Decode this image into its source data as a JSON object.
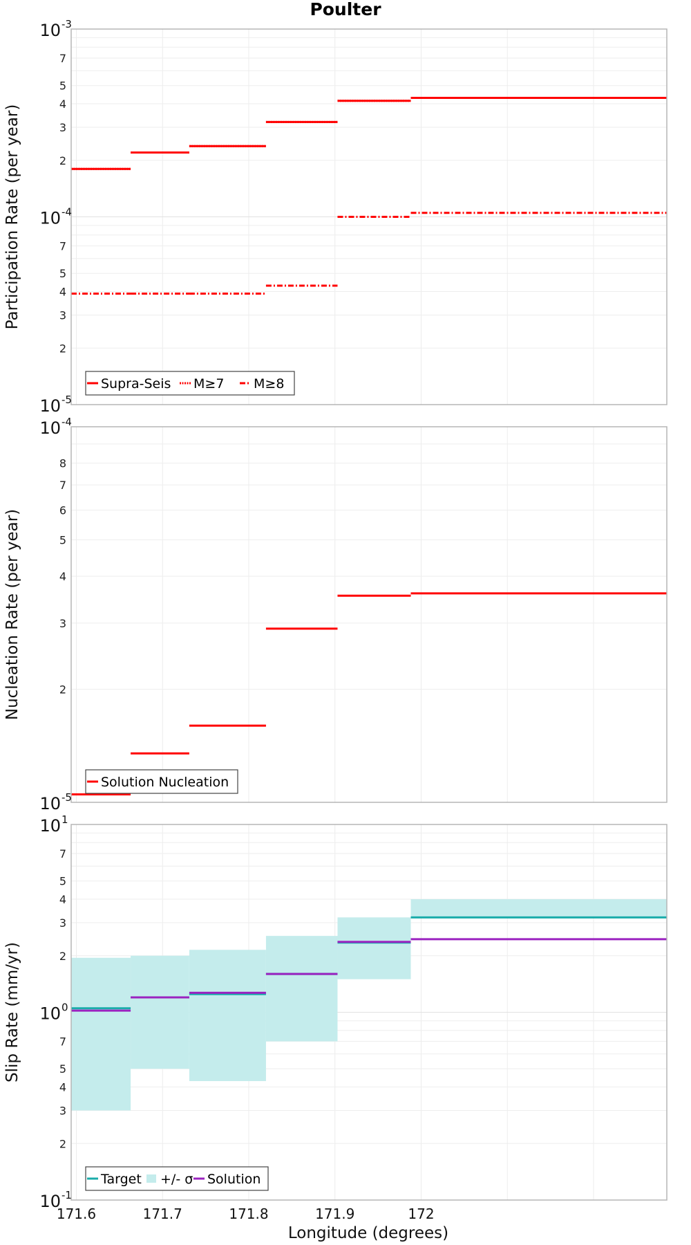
{
  "figure_title": "Poulter",
  "x_axis_label": "Longitude (degrees)",
  "chart_data": [
    {
      "type": "line",
      "ylabel": "Participation Rate (per year)",
      "yscale": "log",
      "ylim": [
        1e-05,
        0.001
      ],
      "xlim": [
        171.594,
        172.285
      ],
      "major_ticks": [
        {
          "base": "10",
          "exp": "-5"
        },
        {
          "base": "10",
          "exp": "-4"
        },
        {
          "base": "10",
          "exp": "-3"
        }
      ],
      "minor_tick_labels": [
        "2",
        "3",
        "4",
        "5",
        "7"
      ],
      "legend_placement": "bottom-left",
      "series": [
        {
          "name": "Supra-Seis",
          "color": "#ff0000",
          "dash": "solid",
          "segments": [
            [
              171.594,
              171.663,
              0.00018
            ],
            [
              171.663,
              171.731,
              0.00022
            ],
            [
              171.731,
              171.82,
              0.000238
            ],
            [
              171.82,
              171.903,
              0.00032
            ],
            [
              171.903,
              171.988,
              0.000415
            ],
            [
              171.988,
              172.285,
              0.00043
            ]
          ]
        },
        {
          "name": "M≥7",
          "color": "#ff0000",
          "dash": "dotted",
          "segments": [
            [
              171.594,
              171.663,
              0.00018
            ],
            [
              171.663,
              171.731,
              0.00022
            ],
            [
              171.731,
              171.82,
              0.000238
            ],
            [
              171.82,
              171.903,
              0.00032
            ],
            [
              171.903,
              171.988,
              0.000415
            ],
            [
              171.988,
              172.285,
              0.00043
            ]
          ]
        },
        {
          "name": "M≥8",
          "color": "#ff0000",
          "dash": "dashdot",
          "segments": [
            [
              171.594,
              171.663,
              3.9e-05
            ],
            [
              171.663,
              171.731,
              3.9e-05
            ],
            [
              171.731,
              171.82,
              3.9e-05
            ],
            [
              171.82,
              171.903,
              4.3e-05
            ],
            [
              171.903,
              171.988,
              0.0001
            ],
            [
              171.988,
              172.285,
              0.000105
            ]
          ]
        }
      ]
    },
    {
      "type": "line",
      "ylabel": "Nucleation Rate (per year)",
      "yscale": "log",
      "ylim": [
        1e-05,
        0.0001
      ],
      "xlim": [
        171.594,
        172.285
      ],
      "major_ticks": [
        {
          "base": "10",
          "exp": "-5"
        },
        {
          "base": "10",
          "exp": "-4"
        }
      ],
      "minor_tick_labels": [
        "2",
        "3",
        "4",
        "5",
        "6",
        "7",
        "8"
      ],
      "legend_placement": "bottom-left",
      "series": [
        {
          "name": "Solution Nucleation",
          "color": "#ff0000",
          "dash": "solid",
          "segments": [
            [
              171.594,
              171.663,
              1.05e-05
            ],
            [
              171.663,
              171.731,
              1.35e-05
            ],
            [
              171.731,
              171.82,
              1.6e-05
            ],
            [
              171.82,
              171.903,
              2.9e-05
            ],
            [
              171.903,
              171.988,
              3.55e-05
            ],
            [
              171.988,
              172.285,
              3.6e-05
            ]
          ]
        }
      ]
    },
    {
      "type": "line",
      "ylabel": "Slip Rate (mm/yr)",
      "xlabel": "Longitude (degrees)",
      "yscale": "log",
      "ylim": [
        0.1,
        10
      ],
      "xlim": [
        171.594,
        172.285
      ],
      "x_ticks": [
        171.6,
        171.7,
        171.8,
        171.9,
        172.0
      ],
      "x_tick_labels": [
        "171.6",
        "171.7",
        "171.8",
        "171.9",
        "172"
      ],
      "major_ticks": [
        {
          "base": "10",
          "exp": "-1"
        },
        {
          "base": "10",
          "exp": "0"
        },
        {
          "base": "10",
          "exp": "1"
        }
      ],
      "minor_tick_labels": [
        "2",
        "3",
        "4",
        "5",
        "7"
      ],
      "legend_placement": "bottom-left",
      "series": [
        {
          "name": "+/- σ",
          "color": "#c4ecec",
          "kind": "band",
          "segments": [
            [
              171.594,
              171.663,
              0.3,
              1.95
            ],
            [
              171.663,
              171.731,
              0.5,
              2.0
            ],
            [
              171.731,
              171.82,
              0.43,
              2.15
            ],
            [
              171.82,
              171.903,
              0.7,
              2.55
            ],
            [
              171.903,
              171.988,
              1.5,
              3.2
            ],
            [
              171.988,
              172.285,
              3.2,
              4.0
            ]
          ]
        },
        {
          "name": "Target",
          "color": "#1aacaa",
          "kind": "step",
          "segments": [
            [
              171.594,
              171.663,
              1.05
            ],
            [
              171.663,
              171.731,
              1.2
            ],
            [
              171.731,
              171.82,
              1.25
            ],
            [
              171.82,
              171.903,
              1.6
            ],
            [
              171.903,
              171.988,
              2.35
            ],
            [
              171.988,
              172.285,
              3.2
            ]
          ]
        },
        {
          "name": "Solution",
          "color": "#9b23c0",
          "kind": "step",
          "segments": [
            [
              171.594,
              171.663,
              1.02
            ],
            [
              171.663,
              171.731,
              1.2
            ],
            [
              171.731,
              171.82,
              1.27
            ],
            [
              171.82,
              171.903,
              1.6
            ],
            [
              171.903,
              171.988,
              2.37
            ],
            [
              171.988,
              172.285,
              2.45
            ]
          ]
        }
      ]
    }
  ]
}
